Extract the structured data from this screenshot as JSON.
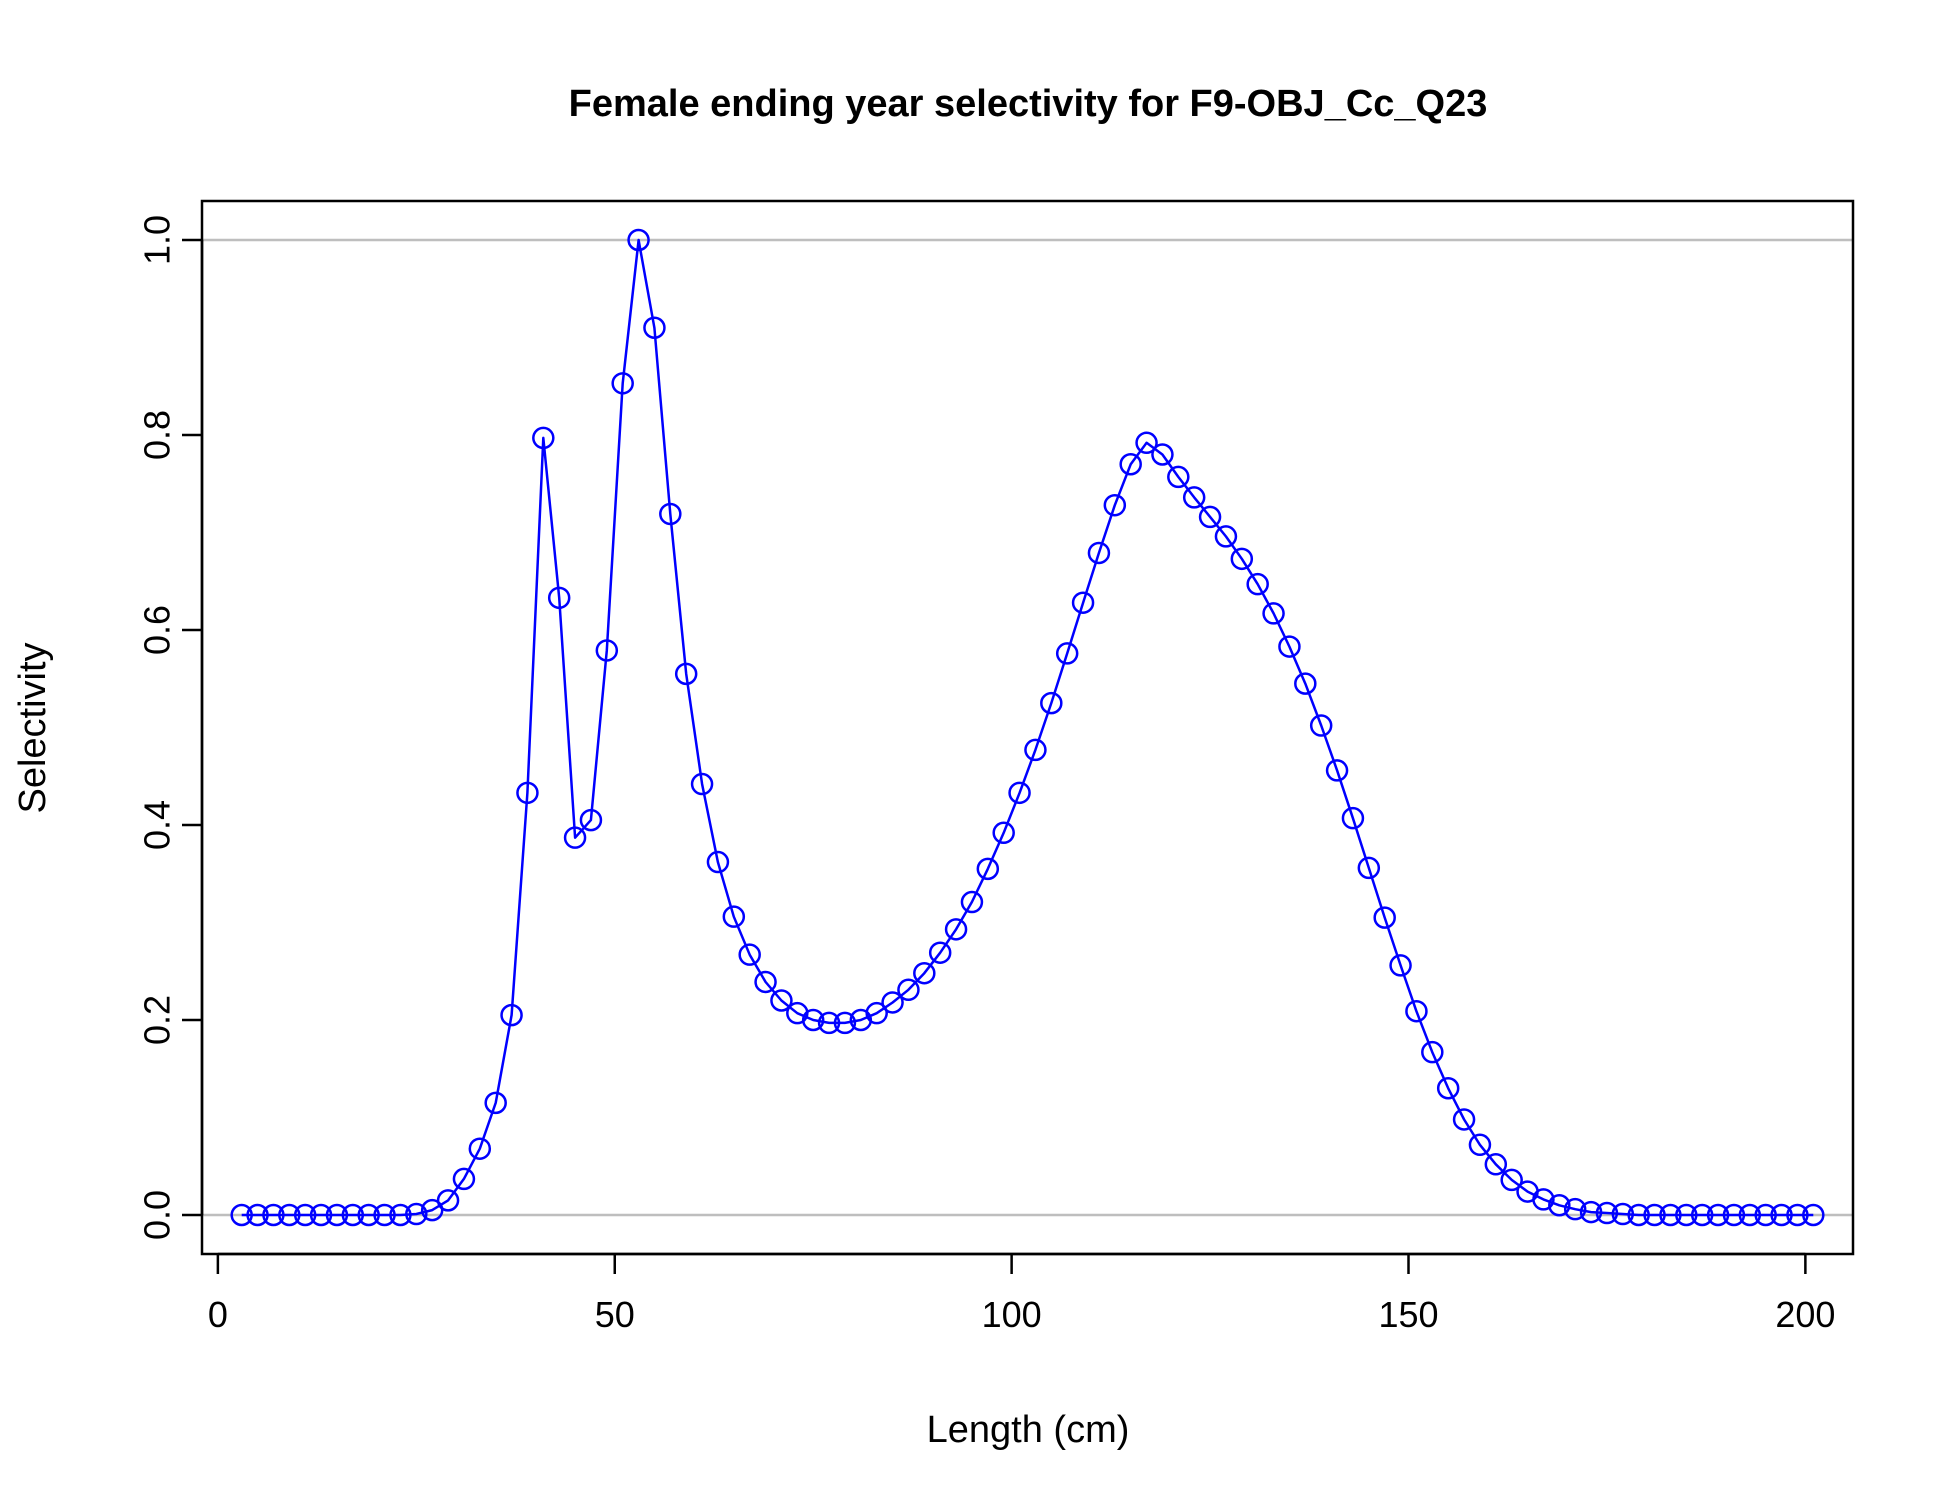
{
  "chart_data": {
    "type": "line",
    "title": "Female ending year selectivity for F9-OBJ_Cc_Q23",
    "xlabel": "Length (cm)",
    "ylabel": "Selectivity",
    "xlim": [
      -2,
      206
    ],
    "ylim": [
      -0.04,
      1.04
    ],
    "xticks": [
      "0",
      "50",
      "100",
      "150",
      "200"
    ],
    "xtick_values": [
      0,
      50,
      100,
      150,
      200
    ],
    "yticks": [
      "0.0",
      "0.2",
      "0.4",
      "0.6",
      "0.8",
      "1.0"
    ],
    "ytick_values": [
      0.0,
      0.2,
      0.4,
      0.6,
      0.8,
      1.0
    ],
    "reference_lines": [
      0,
      1
    ],
    "grid": false,
    "legend": "none",
    "series": [
      {
        "color": "#0000ff",
        "marker": "open-circle",
        "x": [
          3,
          5,
          7,
          9,
          11,
          13,
          15,
          17,
          19,
          21,
          23,
          25,
          27,
          29,
          31,
          33,
          35,
          37,
          39,
          41,
          43,
          45,
          47,
          49,
          51,
          53,
          55,
          57,
          59,
          61,
          63,
          65,
          67,
          69,
          71,
          73,
          75,
          77,
          79,
          81,
          83,
          85,
          87,
          89,
          91,
          93,
          95,
          97,
          99,
          101,
          103,
          105,
          107,
          109,
          111,
          113,
          115,
          117,
          119,
          121,
          123,
          125,
          127,
          129,
          131,
          133,
          135,
          137,
          139,
          141,
          143,
          145,
          147,
          149,
          151,
          153,
          155,
          157,
          159,
          161,
          163,
          165,
          167,
          169,
          171,
          173,
          175,
          177,
          179,
          181,
          183,
          185,
          187,
          189,
          191,
          193,
          195,
          197,
          199,
          201
        ],
        "y": [
          0.0,
          0.0,
          0.0,
          0.0,
          0.0,
          0.0,
          0.0,
          0.0,
          0.0,
          0.0,
          0.0,
          0.001,
          0.005,
          0.015,
          0.037,
          0.068,
          0.115,
          0.205,
          0.433,
          0.797,
          0.633,
          0.387,
          0.405,
          0.579,
          0.853,
          1.0,
          0.91,
          0.719,
          0.555,
          0.442,
          0.362,
          0.306,
          0.267,
          0.239,
          0.22,
          0.207,
          0.2,
          0.197,
          0.197,
          0.2,
          0.207,
          0.218,
          0.231,
          0.248,
          0.269,
          0.293,
          0.321,
          0.355,
          0.392,
          0.433,
          0.477,
          0.525,
          0.576,
          0.628,
          0.679,
          0.728,
          0.77,
          0.792,
          0.78,
          0.757,
          0.736,
          0.716,
          0.696,
          0.673,
          0.647,
          0.617,
          0.583,
          0.545,
          0.502,
          0.456,
          0.407,
          0.356,
          0.305,
          0.256,
          0.209,
          0.167,
          0.13,
          0.098,
          0.072,
          0.052,
          0.036,
          0.024,
          0.016,
          0.01,
          0.006,
          0.003,
          0.002,
          0.001,
          0.0,
          0.0,
          0.0,
          0.0,
          0.0,
          0.0,
          0.0,
          0.0,
          0.0,
          0.0,
          0.0,
          0.0
        ]
      }
    ]
  }
}
